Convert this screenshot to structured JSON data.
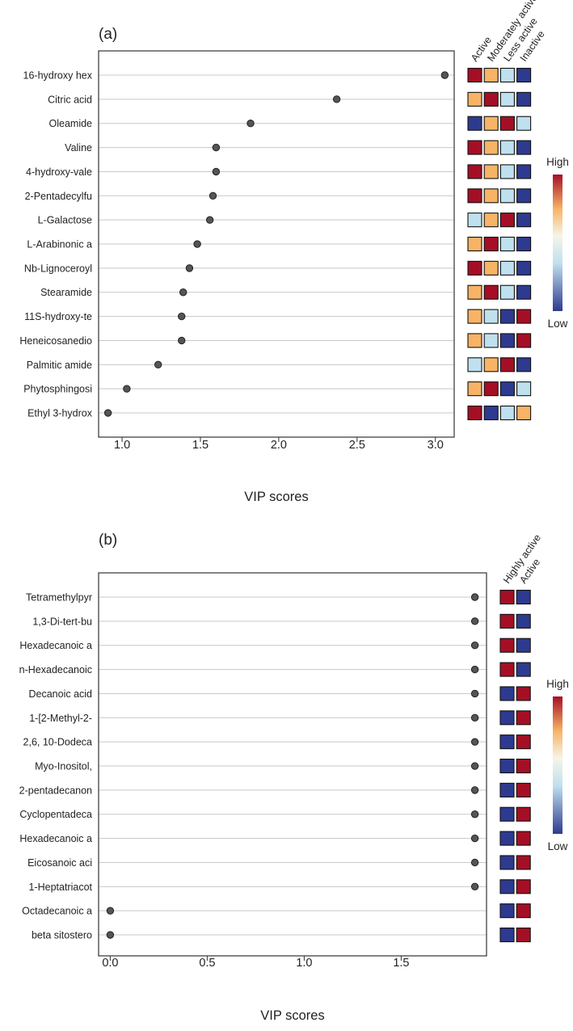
{
  "chart_data": [
    {
      "panel": "(a)",
      "type": "scatter",
      "xlabel": "VIP scores",
      "xlim": [
        0.85,
        3.12
      ],
      "xticks": [
        1.0,
        1.5,
        2.0,
        2.5,
        3.0
      ],
      "xtick_labels": [
        "1.0",
        "1.5",
        "2.0",
        "2.5",
        "3.0"
      ],
      "heatmap_columns": [
        "Active",
        "Moderately active",
        "Less active",
        "Inactive"
      ],
      "legend": {
        "high": "High",
        "low": "Low"
      },
      "rows": [
        {
          "name": "16-hydroxy hex",
          "vip": 3.06,
          "levels": [
            1.0,
            0.75,
            0.35,
            0.0
          ]
        },
        {
          "name": "Citric acid",
          "vip": 2.37,
          "levels": [
            0.75,
            1.0,
            0.35,
            0.0
          ]
        },
        {
          "name": "Oleamide",
          "vip": 1.82,
          "levels": [
            0.0,
            0.75,
            1.0,
            0.35
          ]
        },
        {
          "name": "Valine",
          "vip": 1.6,
          "levels": [
            1.0,
            0.75,
            0.35,
            0.0
          ]
        },
        {
          "name": "4-hydroxy-vale",
          "vip": 1.6,
          "levels": [
            1.0,
            0.75,
            0.35,
            0.0
          ]
        },
        {
          "name": "2-Pentadecylfu",
          "vip": 1.58,
          "levels": [
            1.0,
            0.75,
            0.35,
            0.0
          ]
        },
        {
          "name": "L-Galactose",
          "vip": 1.56,
          "levels": [
            0.35,
            0.75,
            1.0,
            0.0
          ]
        },
        {
          "name": "L-Arabinonic a",
          "vip": 1.48,
          "levels": [
            0.75,
            1.0,
            0.35,
            0.0
          ]
        },
        {
          "name": "Nb-Lignoceroyl",
          "vip": 1.43,
          "levels": [
            1.0,
            0.75,
            0.35,
            0.0
          ]
        },
        {
          "name": "Stearamide",
          "vip": 1.39,
          "levels": [
            0.75,
            1.0,
            0.35,
            0.0
          ]
        },
        {
          "name": "11S-hydroxy-te",
          "vip": 1.38,
          "levels": [
            0.75,
            0.35,
            0.0,
            1.0
          ]
        },
        {
          "name": "Heneicosanedio",
          "vip": 1.38,
          "levels": [
            0.75,
            0.35,
            0.0,
            1.0
          ]
        },
        {
          "name": "Palmitic amide",
          "vip": 1.23,
          "levels": [
            0.35,
            0.75,
            1.0,
            0.0
          ]
        },
        {
          "name": "Phytosphingosi",
          "vip": 1.03,
          "levels": [
            0.75,
            1.0,
            0.0,
            0.35
          ]
        },
        {
          "name": "Ethyl 3-hydrox",
          "vip": 0.91,
          "levels": [
            1.0,
            0.0,
            0.35,
            0.75
          ]
        }
      ]
    },
    {
      "panel": "(b)",
      "type": "scatter",
      "xlabel": "VIP scores",
      "xlim": [
        -0.06,
        1.94
      ],
      "xticks": [
        0.0,
        0.5,
        1.0,
        1.5
      ],
      "xtick_labels": [
        "0.0",
        "0.5",
        "1.0",
        "1.5"
      ],
      "heatmap_columns": [
        "Highly active",
        "Active"
      ],
      "legend": {
        "high": "High",
        "low": "Low"
      },
      "rows": [
        {
          "name": "Tetramethylpyr",
          "vip": 1.88,
          "levels": [
            1.0,
            0.0
          ]
        },
        {
          "name": "1,3-Di-tert-bu",
          "vip": 1.88,
          "levels": [
            1.0,
            0.0
          ]
        },
        {
          "name": "Hexadecanoic a",
          "vip": 1.88,
          "levels": [
            1.0,
            0.0
          ]
        },
        {
          "name": "n-Hexadecanoic",
          "vip": 1.88,
          "levels": [
            1.0,
            0.0
          ]
        },
        {
          "name": "Decanoic acid",
          "vip": 1.88,
          "levels": [
            0.0,
            1.0
          ]
        },
        {
          "name": "1-[2-Methyl-2-",
          "vip": 1.88,
          "levels": [
            0.0,
            1.0
          ]
        },
        {
          "name": "2,6, 10-Dodeca",
          "vip": 1.88,
          "levels": [
            0.0,
            1.0
          ]
        },
        {
          "name": "Myo-Inositol,",
          "vip": 1.88,
          "levels": [
            0.0,
            1.0
          ]
        },
        {
          "name": "2-pentadecanon",
          "vip": 1.88,
          "levels": [
            0.0,
            1.0
          ]
        },
        {
          "name": "Cyclopentadeca",
          "vip": 1.88,
          "levels": [
            0.0,
            1.0
          ]
        },
        {
          "name": "Hexadecanoic a",
          "vip": 1.88,
          "levels": [
            0.0,
            1.0
          ]
        },
        {
          "name": "Eicosanoic aci",
          "vip": 1.88,
          "levels": [
            0.0,
            1.0
          ]
        },
        {
          "name": "1-Heptatriacot",
          "vip": 1.88,
          "levels": [
            0.0,
            1.0
          ]
        },
        {
          "name": "Octadecanoic a",
          "vip": 0.0,
          "levels": [
            0.0,
            1.0
          ]
        },
        {
          "name": "beta sitostero",
          "vip": 0.0,
          "levels": [
            0.0,
            1.0
          ]
        }
      ]
    }
  ],
  "colors": {
    "low": "#2e3a8f",
    "lightblue": "#bfe0ee",
    "mid": "#f5f5e8",
    "orange": "#f7b366",
    "high": "#a50f25",
    "point": "#555555",
    "grid": "#c8c8c8"
  }
}
